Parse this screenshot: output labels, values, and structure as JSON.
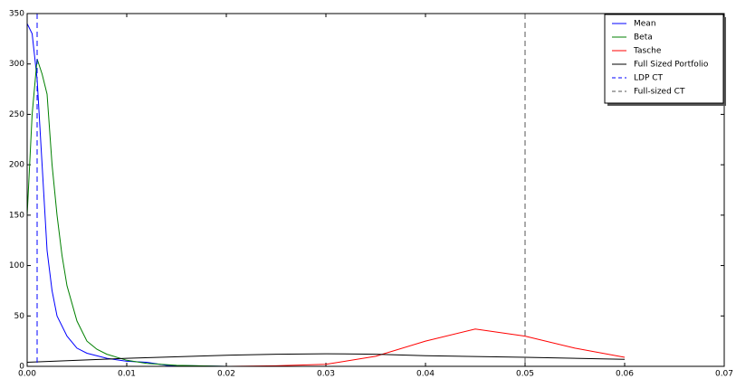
{
  "chart_data": {
    "type": "line",
    "series": [
      {
        "name": "Mean",
        "color": "#0000ff",
        "x": [
          0,
          0.0005,
          0.001,
          0.0015,
          0.002,
          0.0025,
          0.003,
          0.004,
          0.005,
          0.006,
          0.008,
          0.01,
          0.012,
          0.014,
          0.02,
          0.03,
          0.04,
          0.05,
          0.06
        ],
        "values": [
          340,
          330,
          285,
          200,
          115,
          75,
          50,
          30,
          18,
          13,
          8,
          5,
          4,
          1,
          0,
          0,
          0,
          0,
          0
        ]
      },
      {
        "name": "Beta",
        "color": "#008000",
        "x": [
          0,
          0.0005,
          0.001,
          0.0015,
          0.002,
          0.0025,
          0.003,
          0.0035,
          0.004,
          0.005,
          0.006,
          0.007,
          0.008,
          0.01,
          0.012,
          0.015,
          0.02,
          0.03,
          0.04,
          0.05,
          0.06
        ],
        "values": [
          150,
          250,
          305,
          290,
          270,
          200,
          150,
          110,
          80,
          45,
          25,
          17,
          12,
          6,
          3,
          1,
          0,
          0,
          0,
          0,
          0
        ]
      },
      {
        "name": "Tasche",
        "color": "#ff0000",
        "x": [
          0,
          0.02,
          0.025,
          0.03,
          0.035,
          0.04,
          0.045,
          0.05,
          0.055,
          0.06
        ],
        "values": [
          0,
          0,
          0.5,
          2,
          10,
          25,
          37,
          30,
          18,
          9
        ]
      },
      {
        "name": "Full Sized Portfolio",
        "color": "#000000",
        "x": [
          0,
          0.01,
          0.02,
          0.025,
          0.03,
          0.035,
          0.04,
          0.05,
          0.06
        ],
        "values": [
          4,
          8,
          11,
          12,
          12.5,
          12,
          10.5,
          9,
          7
        ]
      },
      {
        "name": "LDP CT",
        "color": "#0000ff",
        "style": "dashed",
        "vline": 0.001
      },
      {
        "name": "Full-sized CT",
        "color": "#555555",
        "style": "dashed",
        "vline": 0.05
      }
    ],
    "xlim": [
      0,
      0.07
    ],
    "xticks": [
      {
        "value": 0,
        "label": "0.00"
      },
      {
        "value": 0.01,
        "label": "0.01"
      },
      {
        "value": 0.02,
        "label": "0.02"
      },
      {
        "value": 0.03,
        "label": "0.03"
      },
      {
        "value": 0.04,
        "label": "0.04"
      },
      {
        "value": 0.05,
        "label": "0.05"
      },
      {
        "value": 0.06,
        "label": "0.06"
      },
      {
        "value": 0.07,
        "label": "0.07"
      }
    ],
    "ylim": [
      0,
      350
    ],
    "yticks": [
      0,
      50,
      100,
      150,
      200,
      250,
      300,
      350
    ],
    "legend": "upper right"
  }
}
